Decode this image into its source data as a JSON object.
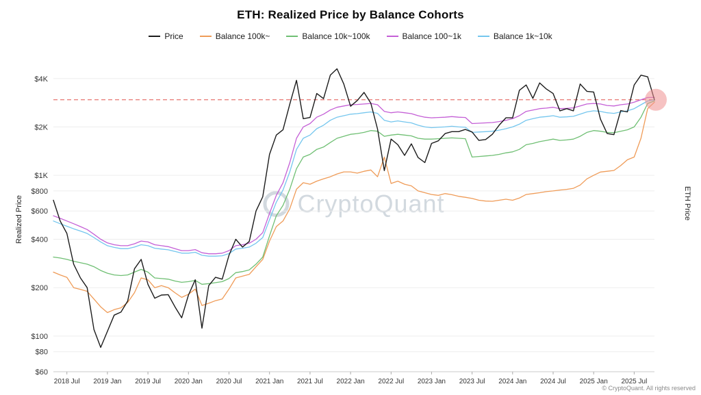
{
  "footer": {
    "copyright": "© CryptoQuant. All rights reserved"
  },
  "chart_data": {
    "type": "line",
    "title": "ETH: Realized Price by Balance Cohorts",
    "ylabel": "Realized Price",
    "ylabel_right": "ETH Price",
    "xlabel": "",
    "yscale": "log",
    "ylim": [
      60,
      5200
    ],
    "grid": "horizontal",
    "legend_position": "top",
    "watermark": "CryptoQuant",
    "x": [
      "2018-05",
      "2018-06",
      "2018-07",
      "2018-08",
      "2018-09",
      "2018-10",
      "2018-11",
      "2018-12",
      "2019-01",
      "2019-02",
      "2019-03",
      "2019-04",
      "2019-05",
      "2019-06",
      "2019-07",
      "2019-08",
      "2019-09",
      "2019-10",
      "2019-11",
      "2019-12",
      "2020-01",
      "2020-02",
      "2020-03",
      "2020-04",
      "2020-05",
      "2020-06",
      "2020-07",
      "2020-08",
      "2020-09",
      "2020-10",
      "2020-11",
      "2020-12",
      "2021-01",
      "2021-02",
      "2021-03",
      "2021-04",
      "2021-05",
      "2021-06",
      "2021-07",
      "2021-08",
      "2021-09",
      "2021-10",
      "2021-11",
      "2021-12",
      "2022-01",
      "2022-02",
      "2022-03",
      "2022-04",
      "2022-05",
      "2022-06",
      "2022-07",
      "2022-08",
      "2022-09",
      "2022-10",
      "2022-11",
      "2022-12",
      "2023-01",
      "2023-02",
      "2023-03",
      "2023-04",
      "2023-05",
      "2023-06",
      "2023-07",
      "2023-08",
      "2023-09",
      "2023-10",
      "2023-11",
      "2023-12",
      "2024-01",
      "2024-02",
      "2024-03",
      "2024-04",
      "2024-05",
      "2024-06",
      "2024-07",
      "2024-08",
      "2024-09",
      "2024-10",
      "2024-11",
      "2024-12",
      "2025-01",
      "2025-02",
      "2025-03",
      "2025-04",
      "2025-05",
      "2025-06",
      "2025-07",
      "2025-08",
      "2025-09",
      "2025-10"
    ],
    "x_ticks": [
      {
        "label": "2018 Jul",
        "month": "2018-07"
      },
      {
        "label": "2019 Jan",
        "month": "2019-01"
      },
      {
        "label": "2019 Jul",
        "month": "2019-07"
      },
      {
        "label": "2020 Jan",
        "month": "2020-01"
      },
      {
        "label": "2020 Jul",
        "month": "2020-07"
      },
      {
        "label": "2021 Jan",
        "month": "2021-01"
      },
      {
        "label": "2021 Jul",
        "month": "2021-07"
      },
      {
        "label": "2022 Jan",
        "month": "2022-01"
      },
      {
        "label": "2022 Jul",
        "month": "2022-07"
      },
      {
        "label": "2023 Jan",
        "month": "2023-01"
      },
      {
        "label": "2023 Jul",
        "month": "2023-07"
      },
      {
        "label": "2024 Jan",
        "month": "2024-01"
      },
      {
        "label": "2024 Jul",
        "month": "2024-07"
      },
      {
        "label": "2025 Jan",
        "month": "2025-01"
      },
      {
        "label": "2025 Jul",
        "month": "2025-07"
      }
    ],
    "y_ticks": [
      {
        "value": 4000,
        "label": "$4K"
      },
      {
        "value": 2000,
        "label": "$2K"
      },
      {
        "value": 1000,
        "label": "$1K"
      },
      {
        "value": 800,
        "label": "$800"
      },
      {
        "value": 600,
        "label": "$600"
      },
      {
        "value": 400,
        "label": "$400"
      },
      {
        "value": 200,
        "label": "$200"
      },
      {
        "value": 100,
        "label": "$100"
      },
      {
        "value": 80,
        "label": "$80"
      },
      {
        "value": 60,
        "label": "$60"
      }
    ],
    "series": [
      {
        "name": "Price",
        "color": "#1b1b1b",
        "values": [
          700,
          520,
          435,
          280,
          230,
          200,
          110,
          85,
          107,
          135,
          141,
          165,
          262,
          300,
          210,
          172,
          180,
          181,
          152,
          130,
          180,
          224,
          112,
          206,
          232,
          226,
          318,
          400,
          358,
          388,
          600,
          735,
          1350,
          1780,
          1920,
          2770,
          3900,
          2250,
          2290,
          3230,
          3000,
          4200,
          4600,
          3700,
          2690,
          2920,
          3280,
          2810,
          1940,
          1070,
          1680,
          1550,
          1330,
          1570,
          1290,
          1200,
          1580,
          1640,
          1820,
          1870,
          1870,
          1930,
          1860,
          1650,
          1670,
          1800,
          2050,
          2280,
          2280,
          3380,
          3650,
          3010,
          3760,
          3440,
          3230,
          2520,
          2600,
          2520,
          3700,
          3330,
          3300,
          2240,
          1820,
          1790,
          2530,
          2480,
          3650,
          4200,
          4100,
          2950
        ]
      },
      {
        "name": "Balance 100k~",
        "color": "#ef9b57",
        "values": [
          250,
          240,
          232,
          200,
          195,
          190,
          170,
          152,
          140,
          146,
          150,
          162,
          186,
          230,
          224,
          200,
          206,
          200,
          186,
          174,
          182,
          196,
          155,
          160,
          166,
          170,
          196,
          230,
          236,
          242,
          270,
          300,
          390,
          480,
          520,
          620,
          820,
          900,
          880,
          920,
          950,
          980,
          1020,
          1050,
          1050,
          1032,
          1060,
          1080,
          980,
          1300,
          890,
          920,
          880,
          860,
          800,
          780,
          760,
          750,
          770,
          758,
          740,
          730,
          718,
          700,
          692,
          690,
          700,
          710,
          700,
          722,
          760,
          770,
          780,
          792,
          800,
          810,
          818,
          830,
          870,
          950,
          1000,
          1048,
          1060,
          1072,
          1150,
          1250,
          1300,
          1700,
          2600,
          2850
        ]
      },
      {
        "name": "Balance 10k~100k",
        "color": "#6fbf73",
        "values": [
          310,
          306,
          300,
          292,
          286,
          280,
          270,
          256,
          246,
          240,
          238,
          240,
          250,
          260,
          250,
          230,
          228,
          226,
          220,
          216,
          218,
          222,
          210,
          212,
          215,
          218,
          228,
          248,
          252,
          258,
          280,
          310,
          420,
          560,
          650,
          820,
          1100,
          1300,
          1350,
          1450,
          1500,
          1600,
          1700,
          1750,
          1800,
          1820,
          1850,
          1900,
          1880,
          1750,
          1780,
          1800,
          1780,
          1760,
          1700,
          1680,
          1680,
          1690,
          1700,
          1710,
          1700,
          1690,
          1300,
          1310,
          1320,
          1330,
          1350,
          1380,
          1400,
          1450,
          1550,
          1580,
          1620,
          1650,
          1680,
          1650,
          1660,
          1680,
          1750,
          1850,
          1900,
          1880,
          1850,
          1840,
          1880,
          1920,
          2000,
          2300,
          2800,
          2900
        ]
      },
      {
        "name": "Balance 100~1k",
        "color": "#c45fd6",
        "values": [
          560,
          540,
          520,
          500,
          480,
          460,
          430,
          400,
          380,
          370,
          365,
          365,
          375,
          390,
          385,
          370,
          365,
          360,
          350,
          340,
          340,
          345,
          330,
          325,
          325,
          328,
          340,
          365,
          370,
          378,
          400,
          440,
          580,
          750,
          900,
          1200,
          1700,
          2000,
          2100,
          2300,
          2400,
          2550,
          2650,
          2700,
          2750,
          2760,
          2780,
          2800,
          2750,
          2500,
          2450,
          2480,
          2450,
          2420,
          2350,
          2300,
          2280,
          2290,
          2300,
          2320,
          2300,
          2290,
          2100,
          2110,
          2120,
          2130,
          2160,
          2200,
          2250,
          2350,
          2500,
          2550,
          2600,
          2620,
          2650,
          2600,
          2610,
          2630,
          2700,
          2780,
          2800,
          2780,
          2720,
          2700,
          2750,
          2780,
          2850,
          2950,
          3050,
          3050
        ]
      },
      {
        "name": "Balance 1k~10k",
        "color": "#74c6ee",
        "values": [
          520,
          500,
          482,
          465,
          450,
          435,
          410,
          385,
          365,
          356,
          350,
          350,
          358,
          370,
          365,
          352,
          348,
          344,
          336,
          328,
          328,
          332,
          318,
          314,
          314,
          316,
          326,
          348,
          352,
          358,
          378,
          410,
          530,
          680,
          810,
          1050,
          1450,
          1700,
          1780,
          1950,
          2050,
          2200,
          2300,
          2350,
          2400,
          2420,
          2450,
          2480,
          2430,
          2200,
          2150,
          2180,
          2150,
          2120,
          2050,
          2000,
          1980,
          1990,
          2000,
          2020,
          2000,
          1990,
          1850,
          1860,
          1870,
          1880,
          1910,
          1950,
          2000,
          2080,
          2200,
          2250,
          2300,
          2320,
          2350,
          2300,
          2310,
          2330,
          2400,
          2480,
          2520,
          2500,
          2450,
          2430,
          2480,
          2520,
          2600,
          2750,
          2900,
          2950
        ]
      }
    ],
    "annotations": {
      "dashed_line": {
        "value": 2950,
        "color": "#e0524f",
        "style": "dashed"
      },
      "highlight_circle": {
        "x": "2025-10",
        "value": 2950,
        "color": "#ee8f8f",
        "opacity": 0.55,
        "radius": 16
      }
    }
  }
}
